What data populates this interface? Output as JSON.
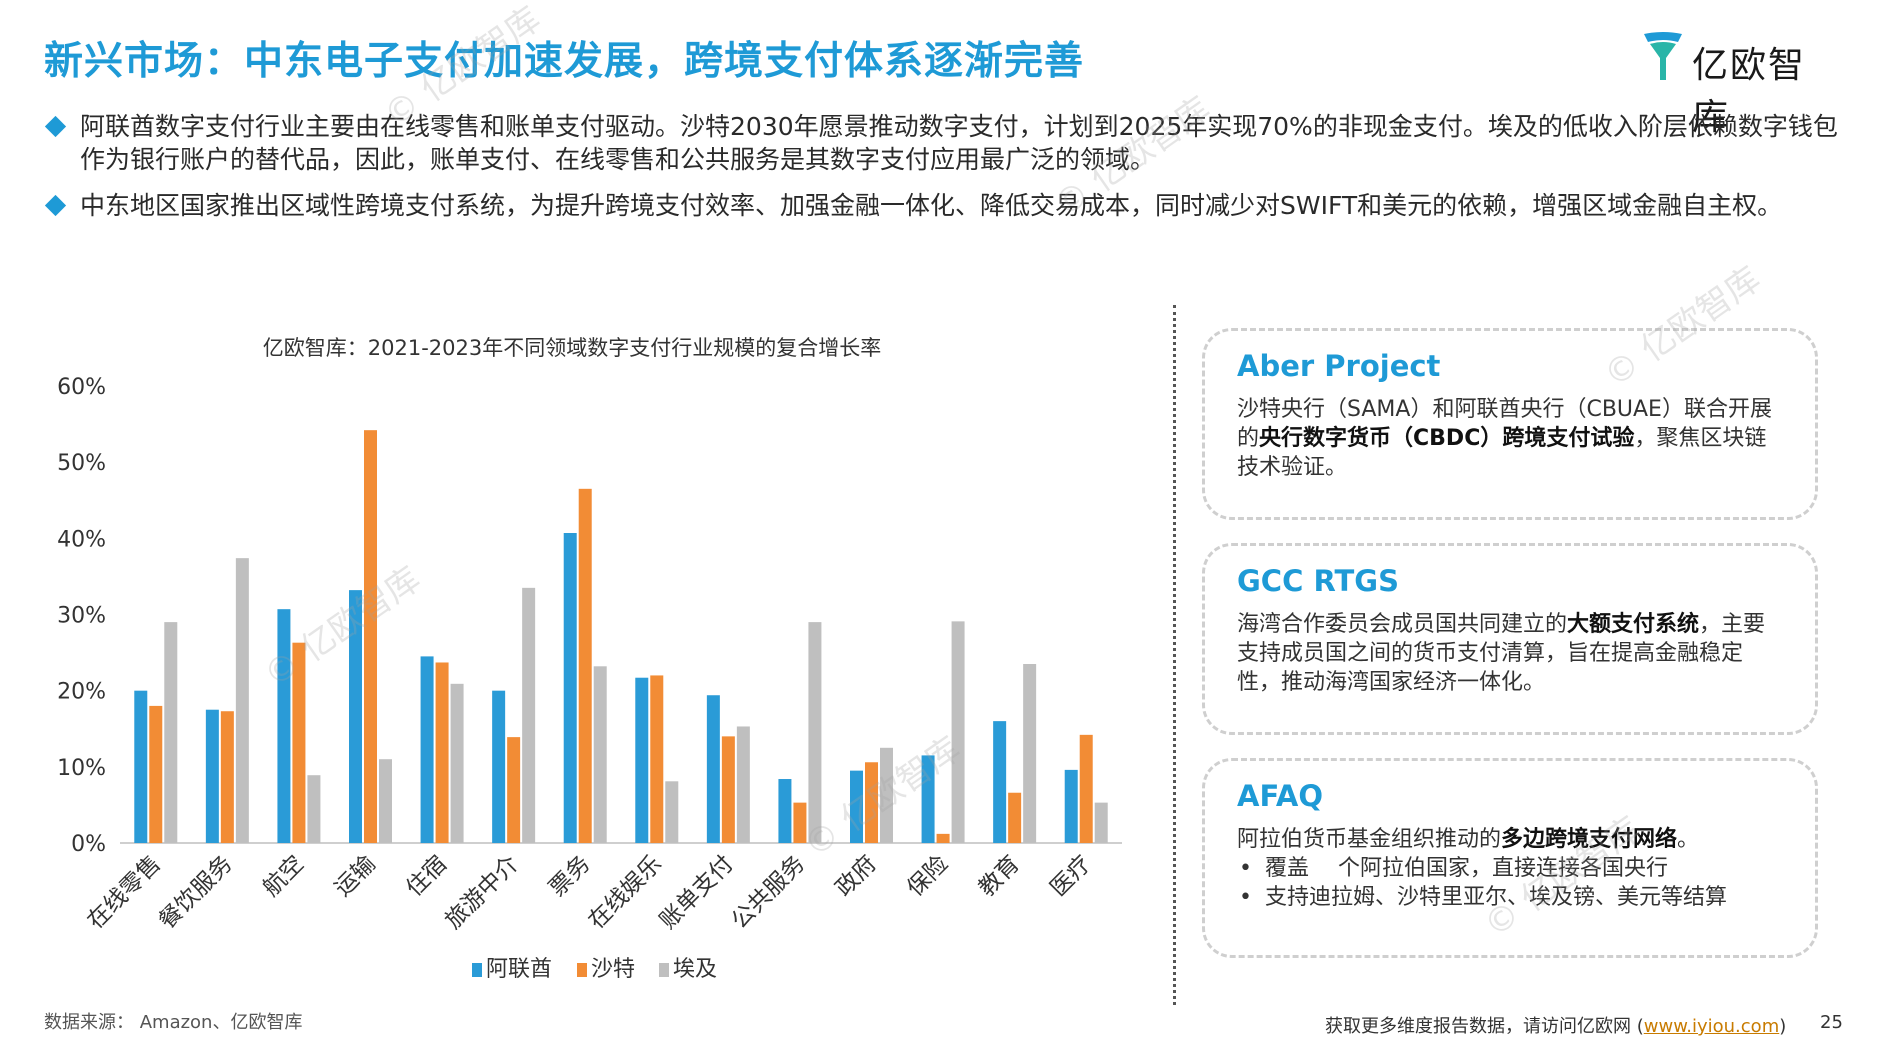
{
  "header": {
    "title": "新兴市场：中东电子支付加速发展，跨境支付体系逐渐完善",
    "logo_text": "亿欧智库"
  },
  "bullets": [
    "阿联酋数字支付行业主要由在线零售和账单支付驱动。沙特2030年愿景推动数字支付，计划到2025年实现70%的非现金支付。埃及的低收入阶层依赖数字钱包作为银行账户的替代品，因此，账单支付、在线零售和公共服务是其数字支付应用最广泛的领域。",
    "中东地区国家推出区域性跨境支付系统，为提升跨境支付效率、加强金融一体化、降低交易成本，同时减少对SWIFT和美元的依赖，增强区域金融自主权。"
  ],
  "cards": [
    {
      "title": "Aber Project",
      "text_a": "沙特央行（SAMA）和阿联酋央行（CBUAE）联合开展的",
      "text_bold": "央行数字货币（CBDC）跨境支付试验",
      "text_b": "，聚焦区块链技术验证。"
    },
    {
      "title": "GCC RTGS",
      "text_a": "海湾合作委员会成员国共同建立的",
      "text_bold": "大额支付系统",
      "text_b": "，主要支持成员国之间的货币支付清算，旨在提高金融稳定性，推动海湾国家经济一体化。"
    },
    {
      "title": "AFAQ",
      "text_a": "阿拉伯货币基金组织推动的",
      "text_bold": "多边跨境支付网络",
      "text_b": "。",
      "items": [
        "覆盖　 个阿拉伯国家，直接连接各国央行",
        "支持迪拉姆、沙特里亚尔、埃及镑、美元等结算"
      ]
    }
  ],
  "watermark": "© 亿欧智库",
  "chart_data": {
    "type": "bar",
    "title": "亿欧智库：2021-2023年不同领域数字支付行业规模的复合增长率",
    "categories": [
      "在线零售",
      "餐饮服务",
      "航空",
      "运输",
      "住宿",
      "旅游中介",
      "票务",
      "在线娱乐",
      "账单支付",
      "公共服务",
      "政府",
      "保险",
      "教育",
      "医疗"
    ],
    "series": [
      {
        "name": "阿联酋",
        "color": "#2a9bd7",
        "values": [
          20.0,
          17.5,
          30.7,
          33.2,
          24.5,
          20.0,
          40.7,
          21.7,
          19.4,
          8.4,
          9.5,
          11.5,
          16.0,
          9.6
        ]
      },
      {
        "name": "沙特",
        "color": "#f28c35",
        "values": [
          18.0,
          17.3,
          26.3,
          54.2,
          23.7,
          13.9,
          46.5,
          22.0,
          14.0,
          5.3,
          10.6,
          1.2,
          6.6,
          14.2
        ]
      },
      {
        "name": "埃及",
        "color": "#bfbfbf",
        "values": [
          29.0,
          37.4,
          8.9,
          11.0,
          20.9,
          33.5,
          23.2,
          8.1,
          15.3,
          29.0,
          12.5,
          29.1,
          23.5,
          5.3
        ]
      }
    ],
    "ylim": [
      0,
      60
    ],
    "yticks": [
      "0%",
      "10%",
      "20%",
      "30%",
      "40%",
      "50%",
      "60%"
    ],
    "legend_position": "bottom"
  },
  "source": "数据来源：  Amazon、亿欧智库",
  "footer": {
    "text": "获取更多维度报告数据，请访问亿欧网 (",
    "link": "www.iyiou.com",
    "close": ")"
  },
  "page_number": "25"
}
